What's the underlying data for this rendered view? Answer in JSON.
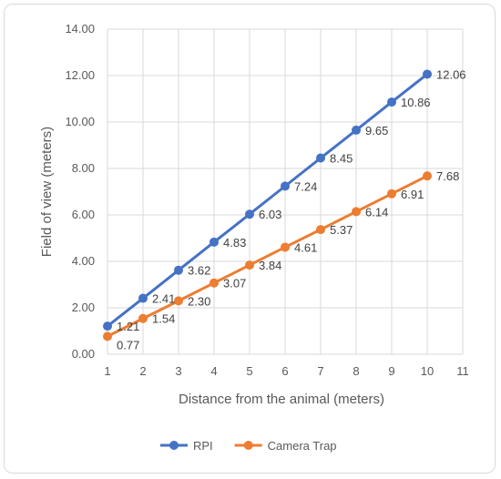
{
  "chart_data": {
    "type": "line",
    "x": [
      1,
      2,
      3,
      4,
      5,
      6,
      7,
      8,
      9,
      10
    ],
    "xlabel": "Distance from the animal (meters)",
    "ylabel": "Field of view (meters)",
    "xlim": [
      1,
      11
    ],
    "ylim": [
      0,
      14
    ],
    "x_ticks": [
      "1",
      "2",
      "3",
      "4",
      "5",
      "6",
      "7",
      "8",
      "9",
      "10",
      "11"
    ],
    "y_ticks": [
      "0.00",
      "2.00",
      "4.00",
      "6.00",
      "8.00",
      "10.00",
      "12.00",
      "14.00"
    ],
    "grid": "vertical and horizontal",
    "legend_position": "bottom",
    "series": [
      {
        "name": "RPI",
        "color": "#4472c4",
        "values": [
          1.21,
          2.41,
          3.62,
          4.83,
          6.03,
          7.24,
          8.45,
          9.65,
          10.86,
          12.06
        ],
        "labels": [
          "1.21",
          "2.41",
          "3.62",
          "4.83",
          "6.03",
          "7.24",
          "8.45",
          "9.65",
          "10.86",
          "12.06"
        ]
      },
      {
        "name": "Camera Trap",
        "color": "#ed7d31",
        "values": [
          0.77,
          1.54,
          2.3,
          3.07,
          3.84,
          4.61,
          5.37,
          6.14,
          6.91,
          7.68
        ],
        "labels": [
          "0.77",
          "1.54",
          "2.30",
          "3.07",
          "3.84",
          "4.61",
          "5.37",
          "6.14",
          "6.91",
          "7.68"
        ]
      }
    ]
  }
}
